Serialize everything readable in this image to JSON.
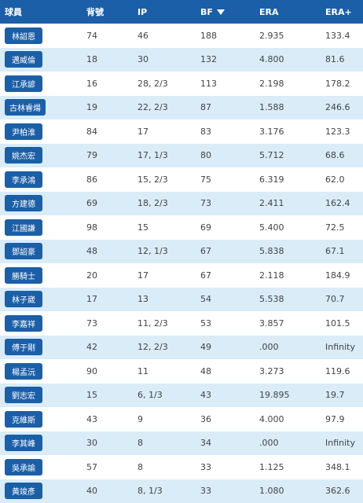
{
  "headers": [
    "球員",
    "背號",
    "IP",
    "BF",
    "ERA",
    "ERA+"
  ],
  "sort_column": "BF",
  "rows": [
    {
      "name": "林詔恩",
      "no": "74",
      "ip": "46",
      "bf": "188",
      "era": "2.935",
      "era_plus": "133.4"
    },
    {
      "name": "邁威倫",
      "no": "18",
      "ip": "30",
      "bf": "132",
      "era": "4.800",
      "era_plus": "81.6"
    },
    {
      "name": "江承諺",
      "no": "16",
      "ip": "28, 2/3",
      "bf": "113",
      "era": "2.198",
      "era_plus": "178.2"
    },
    {
      "name": "古林睿煬",
      "no": "19",
      "ip": "22, 2/3",
      "bf": "87",
      "era": "1.588",
      "era_plus": "246.6"
    },
    {
      "name": "尹柏淮",
      "no": "84",
      "ip": "17",
      "bf": "83",
      "era": "3.176",
      "era_plus": "123.3"
    },
    {
      "name": "姚杰宏",
      "no": "79",
      "ip": "17, 1/3",
      "bf": "80",
      "era": "5.712",
      "era_plus": "68.6"
    },
    {
      "name": "李承鴻",
      "no": "86",
      "ip": "15, 2/3",
      "bf": "75",
      "era": "6.319",
      "era_plus": "62.0"
    },
    {
      "name": "方建德",
      "no": "69",
      "ip": "18, 2/3",
      "bf": "73",
      "era": "2.411",
      "era_plus": "162.4"
    },
    {
      "name": "江國謙",
      "no": "98",
      "ip": "15",
      "bf": "69",
      "era": "5.400",
      "era_plus": "72.5"
    },
    {
      "name": "鄧詔豪",
      "no": "48",
      "ip": "12, 1/3",
      "bf": "67",
      "era": "5.838",
      "era_plus": "67.1"
    },
    {
      "name": "勝騎士",
      "no": "20",
      "ip": "17",
      "bf": "67",
      "era": "2.118",
      "era_plus": "184.9"
    },
    {
      "name": "林子崴",
      "no": "17",
      "ip": "13",
      "bf": "54",
      "era": "5.538",
      "era_plus": "70.7"
    },
    {
      "name": "李嘉祥",
      "no": "73",
      "ip": "11, 2/3",
      "bf": "53",
      "era": "3.857",
      "era_plus": "101.5"
    },
    {
      "name": "傅于剛",
      "no": "42",
      "ip": "12, 2/3",
      "bf": "49",
      "era": ".000",
      "era_plus": "Infinity"
    },
    {
      "name": "楊孟沅",
      "no": "90",
      "ip": "11",
      "bf": "48",
      "era": "3.273",
      "era_plus": "119.6"
    },
    {
      "name": "劉志宏",
      "no": "15",
      "ip": "6, 1/3",
      "bf": "43",
      "era": "19.895",
      "era_plus": "19.7"
    },
    {
      "name": "克維斯",
      "no": "43",
      "ip": "9",
      "bf": "36",
      "era": "4.000",
      "era_plus": "97.9"
    },
    {
      "name": "李其峰",
      "no": "30",
      "ip": "8",
      "bf": "34",
      "era": ".000",
      "era_plus": "Infinity"
    },
    {
      "name": "吳承諭",
      "no": "57",
      "ip": "8",
      "bf": "33",
      "era": "1.125",
      "era_plus": "348.1"
    },
    {
      "name": "黃竣彥",
      "no": "40",
      "ip": "8, 1/3",
      "bf": "33",
      "era": "1.080",
      "era_plus": "362.6"
    }
  ]
}
